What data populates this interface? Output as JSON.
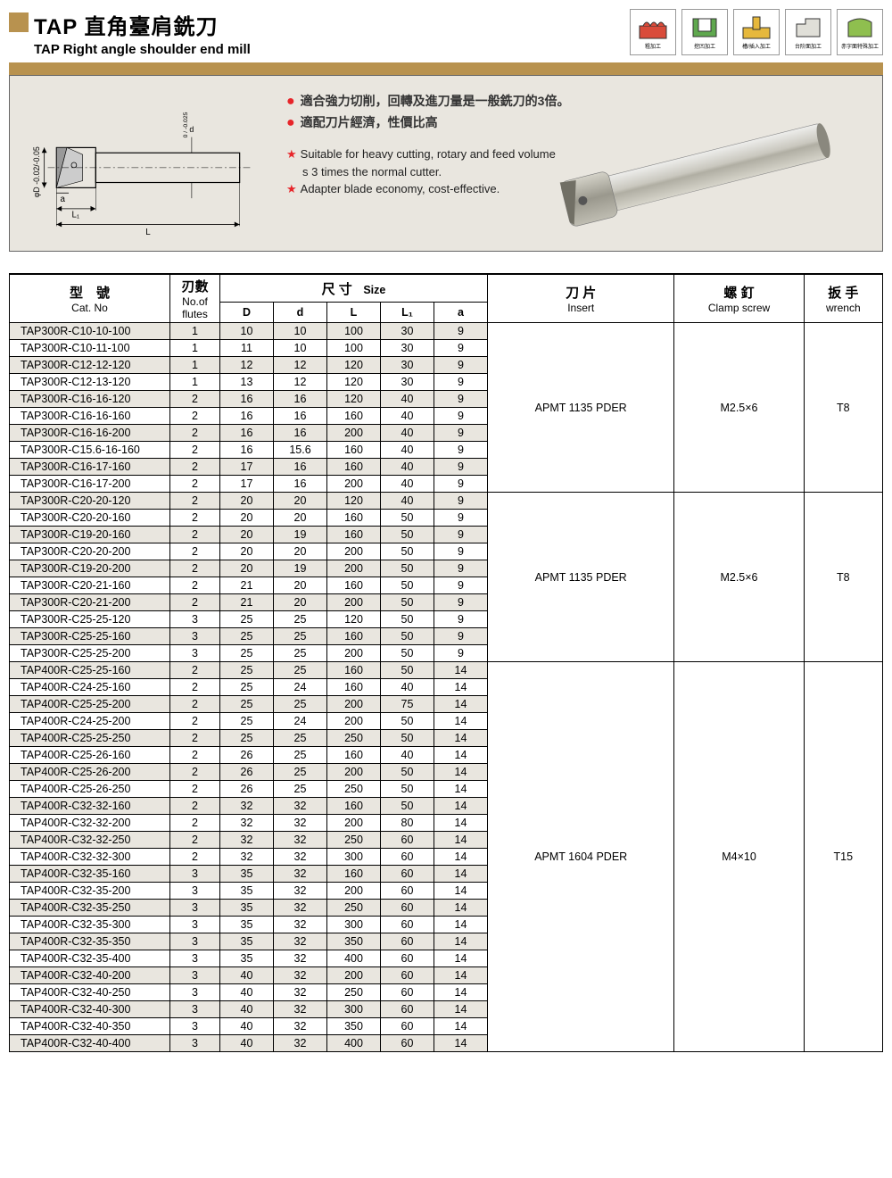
{
  "title": {
    "cn": "TAP 直角臺肩銑刀",
    "en": "TAP Right angle shoulder end mill"
  },
  "icons": [
    {
      "label": "粗加工",
      "color": "#d94b3a"
    },
    {
      "label": "挖凹加工",
      "color": "#5fa84e"
    },
    {
      "label": "槽/插入加工",
      "color": "#e6b83c"
    },
    {
      "label": "台阶面加工",
      "color": "#e0dfd8"
    },
    {
      "label": "赤字面特殊加工",
      "color": "#8fbf4f"
    }
  ],
  "desc": {
    "cn1": "適合強力切削，回轉及進刀量是一般銑刀的3倍。",
    "cn2": "適配刀片經濟，性價比高",
    "en1a": "Suitable for heavy cutting, rotary and feed volume",
    "en1b": "s 3 times the normal cutter.",
    "en2": "Adapter blade economy, cost-effective."
  },
  "diagram": {
    "phi_d_tol": "0.02",
    "d_tol": "0.025",
    "L1": "L₁",
    "L": "L",
    "a": "a",
    "phi_D": "φD",
    "d": "d"
  },
  "headers": {
    "catno_cn": "型　號",
    "catno_en": "Cat. No",
    "flutes_cn": "刃數",
    "flutes_en": "No.of flutes",
    "size_cn": "尺 寸",
    "size_en": "Size",
    "D": "D",
    "d": "d",
    "L": "L",
    "L1": "L₁",
    "a": "a",
    "insert_cn": "刀 片",
    "insert_en": "Insert",
    "screw_cn": "螺 釘",
    "screw_en": "Clamp screw",
    "wrench_cn": "扳 手",
    "wrench_en": "wrench"
  },
  "groups": [
    {
      "insert": "APMT 1135 PDER",
      "screw": "M2.5×6",
      "wrench": "T8",
      "rows": [
        {
          "cat": "TAP300R-C10-10-100",
          "f": 1,
          "D": 10,
          "d": 10,
          "L": 100,
          "L1": 30,
          "a": 9
        },
        {
          "cat": "TAP300R-C10-11-100",
          "f": 1,
          "D": 11,
          "d": 10,
          "L": 100,
          "L1": 30,
          "a": 9
        },
        {
          "cat": "TAP300R-C12-12-120",
          "f": 1,
          "D": 12,
          "d": 12,
          "L": 120,
          "L1": 30,
          "a": 9
        },
        {
          "cat": "TAP300R-C12-13-120",
          "f": 1,
          "D": 13,
          "d": 12,
          "L": 120,
          "L1": 30,
          "a": 9
        },
        {
          "cat": "TAP300R-C16-16-120",
          "f": 2,
          "D": 16,
          "d": 16,
          "L": 120,
          "L1": 40,
          "a": 9
        },
        {
          "cat": "TAP300R-C16-16-160",
          "f": 2,
          "D": 16,
          "d": 16,
          "L": 160,
          "L1": 40,
          "a": 9
        },
        {
          "cat": "TAP300R-C16-16-200",
          "f": 2,
          "D": 16,
          "d": 16,
          "L": 200,
          "L1": 40,
          "a": 9
        },
        {
          "cat": "TAP300R-C15.6-16-160",
          "f": 2,
          "D": 16,
          "d": "15.6",
          "L": 160,
          "L1": 40,
          "a": 9
        },
        {
          "cat": "TAP300R-C16-17-160",
          "f": 2,
          "D": 17,
          "d": 16,
          "L": 160,
          "L1": 40,
          "a": 9
        },
        {
          "cat": "TAP300R-C16-17-200",
          "f": 2,
          "D": 17,
          "d": 16,
          "L": 200,
          "L1": 40,
          "a": 9
        }
      ]
    },
    {
      "insert": "APMT 1135 PDER",
      "screw": "M2.5×6",
      "wrench": "T8",
      "rows": [
        {
          "cat": "TAP300R-C20-20-120",
          "f": 2,
          "D": 20,
          "d": 20,
          "L": 120,
          "L1": 40,
          "a": 9
        },
        {
          "cat": "TAP300R-C20-20-160",
          "f": 2,
          "D": 20,
          "d": 20,
          "L": 160,
          "L1": 50,
          "a": 9
        },
        {
          "cat": "TAP300R-C19-20-160",
          "f": 2,
          "D": 20,
          "d": 19,
          "L": 160,
          "L1": 50,
          "a": 9
        },
        {
          "cat": "TAP300R-C20-20-200",
          "f": 2,
          "D": 20,
          "d": 20,
          "L": 200,
          "L1": 50,
          "a": 9
        },
        {
          "cat": "TAP300R-C19-20-200",
          "f": 2,
          "D": 20,
          "d": 19,
          "L": 200,
          "L1": 50,
          "a": 9
        },
        {
          "cat": "TAP300R-C20-21-160",
          "f": 2,
          "D": 21,
          "d": 20,
          "L": 160,
          "L1": 50,
          "a": 9
        },
        {
          "cat": "TAP300R-C20-21-200",
          "f": 2,
          "D": 21,
          "d": 20,
          "L": 200,
          "L1": 50,
          "a": 9
        },
        {
          "cat": "TAP300R-C25-25-120",
          "f": 3,
          "D": 25,
          "d": 25,
          "L": 120,
          "L1": 50,
          "a": 9
        },
        {
          "cat": "TAP300R-C25-25-160",
          "f": 3,
          "D": 25,
          "d": 25,
          "L": 160,
          "L1": 50,
          "a": 9
        },
        {
          "cat": "TAP300R-C25-25-200",
          "f": 3,
          "D": 25,
          "d": 25,
          "L": 200,
          "L1": 50,
          "a": 9
        }
      ]
    },
    {
      "insert": "APMT 1604 PDER",
      "screw": "M4×10",
      "wrench": "T15",
      "rows": [
        {
          "cat": "TAP400R-C25-25-160",
          "f": 2,
          "D": 25,
          "d": 25,
          "L": 160,
          "L1": 50,
          "a": 14
        },
        {
          "cat": "TAP400R-C24-25-160",
          "f": 2,
          "D": 25,
          "d": 24,
          "L": 160,
          "L1": 40,
          "a": 14
        },
        {
          "cat": "TAP400R-C25-25-200",
          "f": 2,
          "D": 25,
          "d": 25,
          "L": 200,
          "L1": 75,
          "a": 14
        },
        {
          "cat": "TAP400R-C24-25-200",
          "f": 2,
          "D": 25,
          "d": 24,
          "L": 200,
          "L1": 50,
          "a": 14
        },
        {
          "cat": "TAP400R-C25-25-250",
          "f": 2,
          "D": 25,
          "d": 25,
          "L": 250,
          "L1": 50,
          "a": 14
        },
        {
          "cat": "TAP400R-C25-26-160",
          "f": 2,
          "D": 26,
          "d": 25,
          "L": 160,
          "L1": 40,
          "a": 14
        },
        {
          "cat": "TAP400R-C25-26-200",
          "f": 2,
          "D": 26,
          "d": 25,
          "L": 200,
          "L1": 50,
          "a": 14
        },
        {
          "cat": "TAP400R-C25-26-250",
          "f": 2,
          "D": 26,
          "d": 25,
          "L": 250,
          "L1": 50,
          "a": 14
        },
        {
          "cat": "TAP400R-C32-32-160",
          "f": 2,
          "D": 32,
          "d": 32,
          "L": 160,
          "L1": 50,
          "a": 14
        },
        {
          "cat": "TAP400R-C32-32-200",
          "f": 2,
          "D": 32,
          "d": 32,
          "L": 200,
          "L1": 80,
          "a": 14
        },
        {
          "cat": "TAP400R-C32-32-250",
          "f": 2,
          "D": 32,
          "d": 32,
          "L": 250,
          "L1": 60,
          "a": 14
        },
        {
          "cat": "TAP400R-C32-32-300",
          "f": 2,
          "D": 32,
          "d": 32,
          "L": 300,
          "L1": 60,
          "a": 14
        },
        {
          "cat": "TAP400R-C32-35-160",
          "f": 3,
          "D": 35,
          "d": 32,
          "L": 160,
          "L1": 60,
          "a": 14
        },
        {
          "cat": "TAP400R-C32-35-200",
          "f": 3,
          "D": 35,
          "d": 32,
          "L": 200,
          "L1": 60,
          "a": 14
        },
        {
          "cat": "TAP400R-C32-35-250",
          "f": 3,
          "D": 35,
          "d": 32,
          "L": 250,
          "L1": 60,
          "a": 14
        },
        {
          "cat": "TAP400R-C32-35-300",
          "f": 3,
          "D": 35,
          "d": 32,
          "L": 300,
          "L1": 60,
          "a": 14
        },
        {
          "cat": "TAP400R-C32-35-350",
          "f": 3,
          "D": 35,
          "d": 32,
          "L": 350,
          "L1": 60,
          "a": 14
        },
        {
          "cat": "TAP400R-C32-35-400",
          "f": 3,
          "D": 35,
          "d": 32,
          "L": 400,
          "L1": 60,
          "a": 14
        },
        {
          "cat": "TAP400R-C32-40-200",
          "f": 3,
          "D": 40,
          "d": 32,
          "L": 200,
          "L1": 60,
          "a": 14
        },
        {
          "cat": "TAP400R-C32-40-250",
          "f": 3,
          "D": 40,
          "d": 32,
          "L": 250,
          "L1": 60,
          "a": 14
        },
        {
          "cat": "TAP400R-C32-40-300",
          "f": 3,
          "D": 40,
          "d": 32,
          "L": 300,
          "L1": 60,
          "a": 14
        },
        {
          "cat": "TAP400R-C32-40-350",
          "f": 3,
          "D": 40,
          "d": 32,
          "L": 350,
          "L1": 60,
          "a": 14
        },
        {
          "cat": "TAP400R-C32-40-400",
          "f": 3,
          "D": 40,
          "d": 32,
          "L": 400,
          "L1": 60,
          "a": 14
        }
      ]
    }
  ],
  "colors": {
    "accent": "#b8924f",
    "stripe": "#e9e6df",
    "red": "#e7252a",
    "border": "#000000"
  }
}
